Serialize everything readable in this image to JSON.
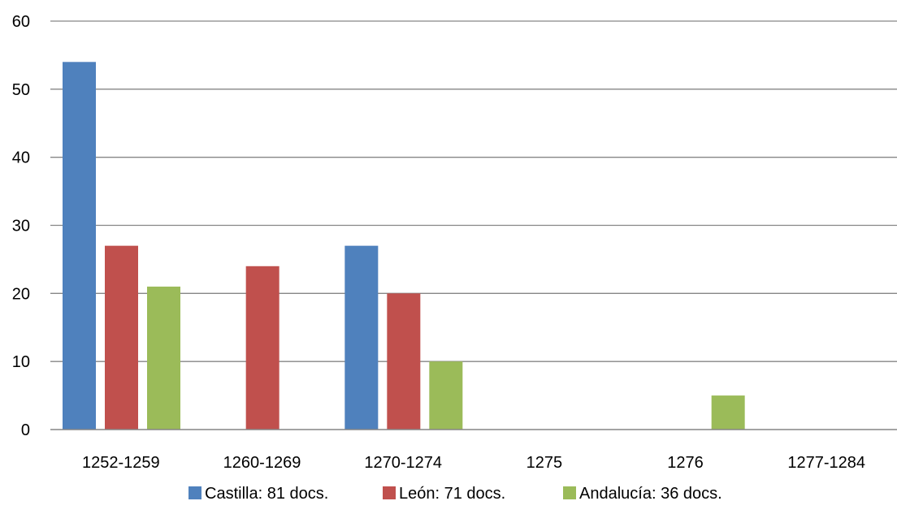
{
  "chart_data": {
    "type": "bar",
    "categories": [
      "1252-1259",
      "1260-1269",
      "1270-1274",
      "1275",
      "1276",
      "1277-1284"
    ],
    "series": [
      {
        "name": "Castilla: 81 docs.",
        "color": "#4F81BD",
        "values": [
          54,
          0,
          27,
          0,
          0,
          0
        ]
      },
      {
        "name": "León: 71 docs.",
        "color": "#C0504D",
        "values": [
          27,
          24,
          20,
          0,
          0,
          0
        ]
      },
      {
        "name": "Andalucía: 36 docs.",
        "color": "#9BBB59",
        "values": [
          21,
          0,
          10,
          0,
          5,
          0
        ]
      }
    ],
    "y_ticks": [
      0,
      10,
      20,
      30,
      40,
      50,
      60
    ],
    "ylim": [
      0,
      60
    ],
    "grid": true,
    "legend_position": "bottom",
    "title": "",
    "xlabel": "",
    "ylabel": ""
  }
}
